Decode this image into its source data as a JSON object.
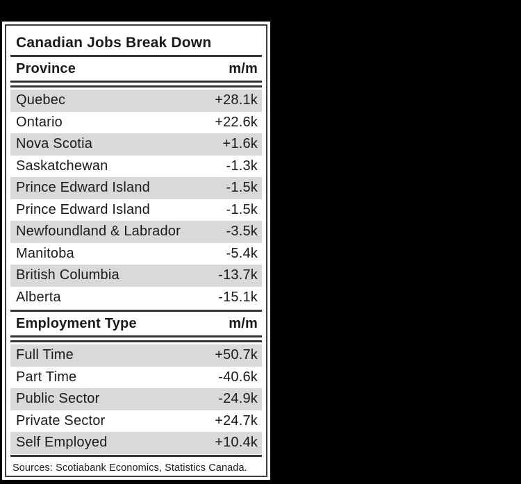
{
  "page": {
    "title": "Canadian Jobs Break Down",
    "source_note": "Sources: Scotiabank Economics, Statistics Canada."
  },
  "colors": {
    "background": "#000000",
    "panel": "#ffffff",
    "frame_border": "#3d3d3d",
    "rule": "#333333",
    "row_stripe": "#d9d9d9",
    "text": "#1a1a1a"
  },
  "chart_data": {
    "type": "table",
    "title": "Canadian Jobs Break Down",
    "source": "Sources: Scotiabank Economics, Statistics Canada.",
    "sections": [
      {
        "header": {
          "label": "Province",
          "value": "m/m"
        },
        "rows": [
          {
            "label": "Quebec",
            "value": "+28.1k",
            "value_k": 28.1
          },
          {
            "label": "Ontario",
            "value": "+22.6k",
            "value_k": 22.6
          },
          {
            "label": "Nova Scotia",
            "value": "+1.6k",
            "value_k": 1.6
          },
          {
            "label": "Saskatchewan",
            "value": "-1.3k",
            "value_k": -1.3
          },
          {
            "label": "Prince Edward Island",
            "value": "-1.5k",
            "value_k": -1.5
          },
          {
            "label": "Prince Edward Island",
            "value": "-1.5k",
            "value_k": -1.5
          },
          {
            "label": "Newfoundland & Labrador",
            "value": "-3.5k",
            "value_k": -3.5
          },
          {
            "label": "Manitoba",
            "value": "-5.4k",
            "value_k": -5.4
          },
          {
            "label": "British Columbia",
            "value": "-13.7k",
            "value_k": -13.7
          },
          {
            "label": "Alberta",
            "value": "-15.1k",
            "value_k": -15.1
          }
        ]
      },
      {
        "header": {
          "label": "Employment Type",
          "value": "m/m"
        },
        "rows": [
          {
            "label": "Full Time",
            "value": "+50.7k",
            "value_k": 50.7
          },
          {
            "label": "Part Time",
            "value": "-40.6k",
            "value_k": -40.6
          },
          {
            "label": "Public Sector",
            "value": "-24.9k",
            "value_k": -24.9
          },
          {
            "label": "Private Sector",
            "value": "+24.7k",
            "value_k": 24.7
          },
          {
            "label": "Self Employed",
            "value": "+10.4k",
            "value_k": 10.4
          }
        ]
      }
    ]
  }
}
